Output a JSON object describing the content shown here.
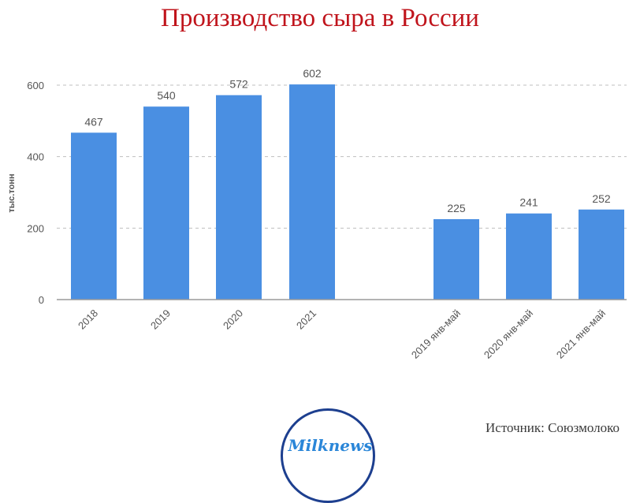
{
  "title": "Производство сыра в России",
  "source": "Источник: Союзмолоко",
  "logo_text": "Milknews",
  "colors": {
    "title": "#c0141c",
    "bar": "#4a8fe2",
    "grid": "#bfbfbf",
    "text": "#555555"
  },
  "chart_data": {
    "type": "bar",
    "title": "Производство сыра в России",
    "xlabel": "",
    "ylabel": "тыс.тонн",
    "ylim": [
      0,
      600
    ],
    "yticks": [
      0,
      200,
      400,
      600
    ],
    "grid": true,
    "categories": [
      "2018",
      "2019",
      "2020",
      "2021",
      "2019 янв-май",
      "2020 янв-май",
      "2021 янв-май"
    ],
    "values": [
      467,
      540,
      572,
      602,
      225,
      241,
      252
    ],
    "data_labels": [
      "467",
      "540",
      "572",
      "602",
      "225",
      "241",
      "252"
    ]
  }
}
